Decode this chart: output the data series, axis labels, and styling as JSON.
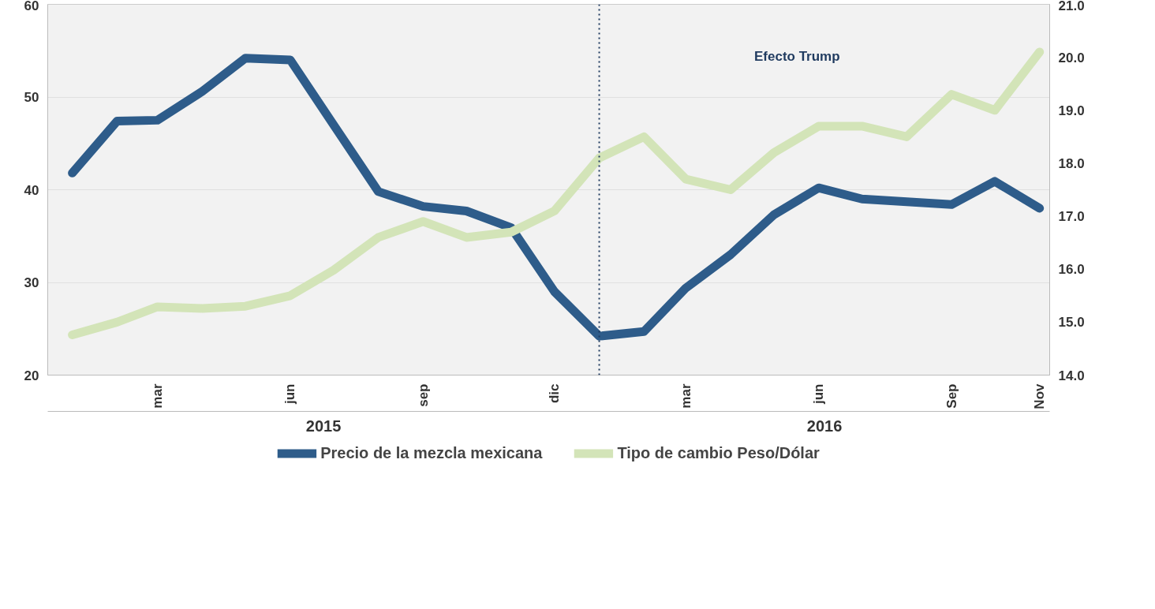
{
  "chart_data": {
    "type": "line",
    "x": [
      "2015-01",
      "2015-02",
      "2015-03",
      "2015-04",
      "2015-05",
      "2015-06",
      "2015-07",
      "2015-08",
      "2015-09",
      "2015-10",
      "2015-11",
      "2015-12",
      "2016-01",
      "2016-02",
      "2016-03",
      "2016-04",
      "2016-05",
      "2016-06",
      "2016-07",
      "2016-08",
      "2016-09",
      "2016-10",
      "2016-11"
    ],
    "series": [
      {
        "name": "Precio de la mezcla mexicana",
        "color": "#2e5c8a",
        "values": [
          41.8,
          47.4,
          47.5,
          50.6,
          54.2,
          54.0,
          47.0,
          39.8,
          38.2,
          37.7,
          35.9,
          29.0,
          24.2,
          24.7,
          29.4,
          33.0,
          37.3,
          40.2,
          39.0,
          38.7,
          38.4,
          40.9,
          38.0
        ]
      },
      {
        "name": "Tipo de cambio Peso/Dólar",
        "color": "#d3e4b8",
        "axis": "y2",
        "values": [
          14.76,
          15.0,
          15.29,
          15.26,
          15.3,
          15.5,
          15.98,
          16.6,
          16.9,
          16.6,
          16.7,
          17.1,
          18.1,
          18.5,
          17.7,
          17.5,
          18.2,
          18.7,
          18.7,
          18.5,
          19.3,
          19.0,
          20.1
        ]
      }
    ],
    "xlim": [
      "2014-12-15",
      "2016-11-08"
    ],
    "xticks": [
      {
        "value": "2015-03",
        "label": "mar"
      },
      {
        "value": "2015-06",
        "label": "jun"
      },
      {
        "value": "2015-09",
        "label": "sep"
      },
      {
        "value": "2015-12",
        "label": "dic"
      },
      {
        "value": "2016-03",
        "label": "mar"
      },
      {
        "value": "2016-06",
        "label": "jun"
      },
      {
        "value": "2016-09",
        "label": "Sep"
      },
      {
        "value": "2016-11",
        "label": "Nov"
      }
    ],
    "ylim": [
      20,
      60
    ],
    "yticks": [
      20,
      30,
      40,
      50,
      60
    ],
    "y2lim": [
      14,
      21
    ],
    "y2ticks": [
      {
        "value": 14,
        "label": "14.0"
      },
      {
        "value": 15,
        "label": "15.0"
      },
      {
        "value": 16,
        "label": "16.0"
      },
      {
        "value": 17,
        "label": "17.0"
      },
      {
        "value": 18,
        "label": "18.0"
      },
      {
        "value": 19,
        "label": "19.0"
      },
      {
        "value": 20,
        "label": "20.0"
      },
      {
        "value": 21,
        "label": "21.0"
      }
    ],
    "ref_lines": [
      {
        "axis": "x",
        "value": "2016-01",
        "color": "#1f3a5f",
        "line_style": "dotted"
      }
    ],
    "annotations": [
      "2015",
      "2016",
      "Efecto Trump"
    ],
    "grid": "y",
    "legend": "bottom",
    "marker": "none",
    "line_style": "solid"
  }
}
